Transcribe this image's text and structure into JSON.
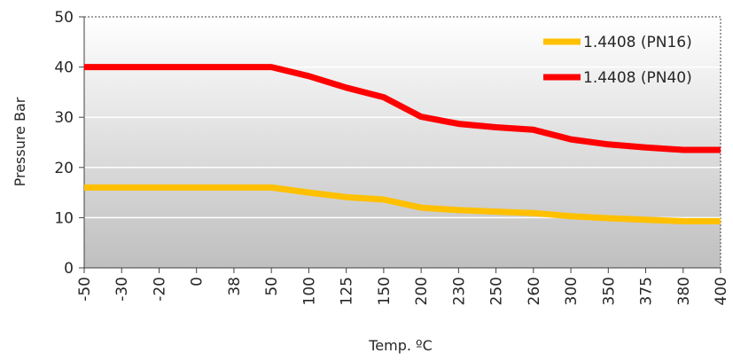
{
  "chart_data": {
    "type": "line",
    "title": "",
    "xlabel": "Temp. ºC",
    "ylabel": "Pressure Bar",
    "categories": [
      "-50",
      "-30",
      "-20",
      "0",
      "38",
      "50",
      "100",
      "125",
      "150",
      "200",
      "230",
      "250",
      "260",
      "300",
      "350",
      "375",
      "380",
      "400"
    ],
    "ylim": [
      0,
      50
    ],
    "yticks": [
      0,
      10,
      20,
      30,
      40,
      50
    ],
    "grid": true,
    "legend_position": "top-right",
    "series": [
      {
        "name": "1.4408 (PN16)",
        "color": "#FFC000",
        "values": [
          16,
          16,
          16,
          16,
          16,
          16,
          15,
          14.1,
          13.6,
          12,
          11.5,
          11.2,
          10.9,
          10.3,
          9.9,
          9.6,
          9.3,
          9.3
        ]
      },
      {
        "name": "1.4408 (PN40)",
        "color": "#FF0000",
        "values": [
          40,
          40,
          40,
          40,
          40,
          40,
          38.2,
          35.9,
          34,
          30.1,
          28.7,
          28,
          27.5,
          25.6,
          24.6,
          24,
          23.5,
          23.5
        ]
      }
    ]
  }
}
